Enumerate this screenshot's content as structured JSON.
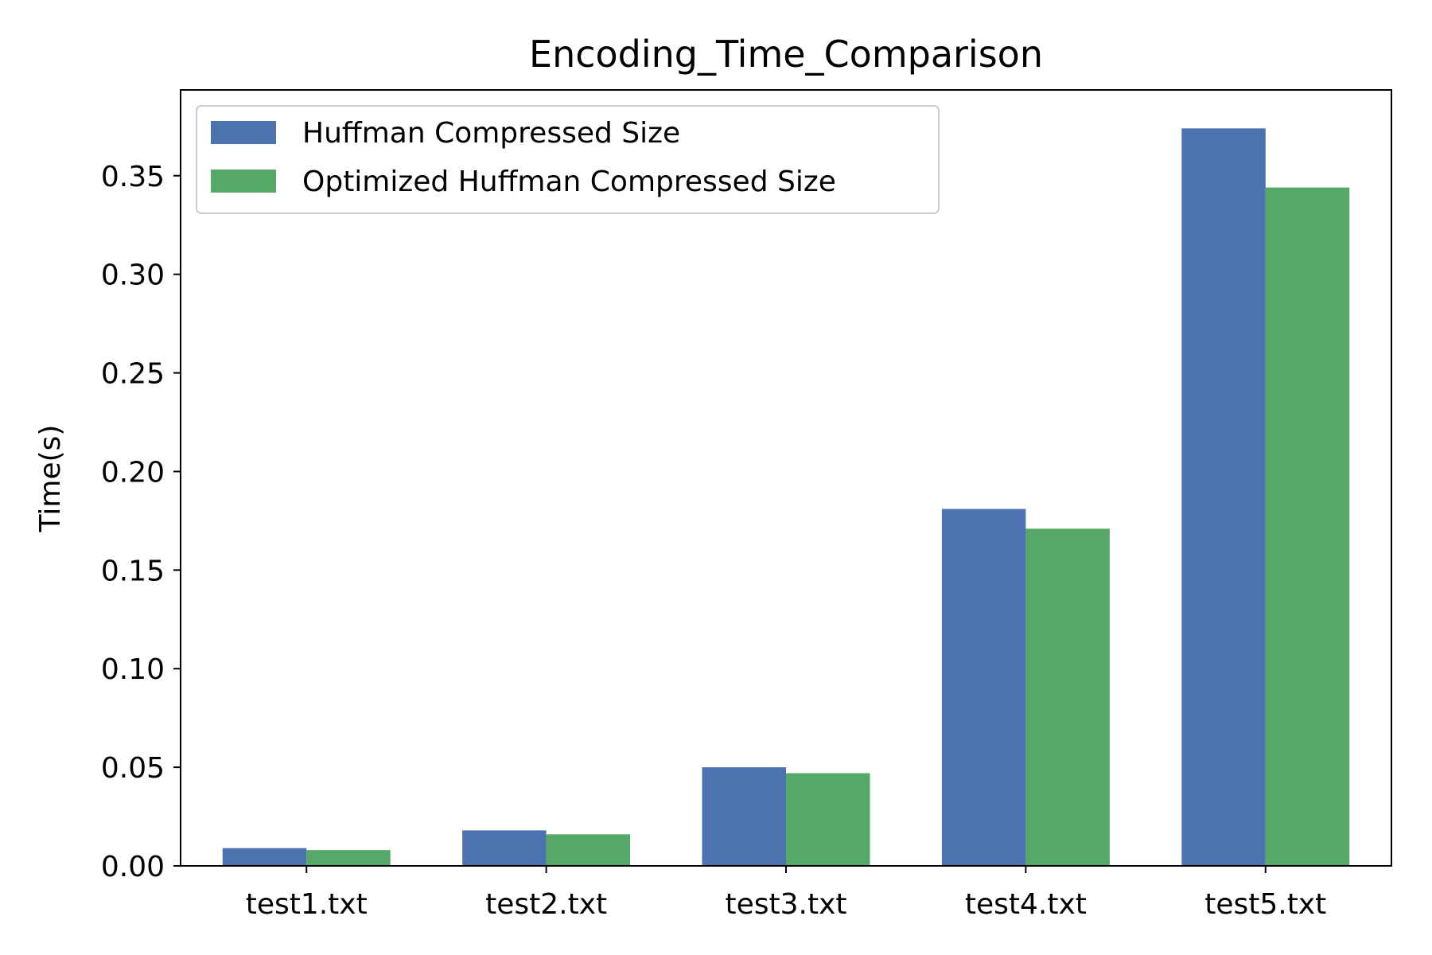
{
  "chart_data": {
    "type": "bar",
    "title": "Encoding_Time_Comparison",
    "xlabel": "",
    "ylabel": "Time(s)",
    "categories": [
      "test1.txt",
      "test2.txt",
      "test3.txt",
      "test4.txt",
      "test5.txt"
    ],
    "series": [
      {
        "name": "Huffman Compressed Size",
        "color": "#4c72b0",
        "values": [
          0.009,
          0.018,
          0.05,
          0.181,
          0.374
        ]
      },
      {
        "name": "Optimized Huffman Compressed Size",
        "color": "#55a868",
        "values": [
          0.008,
          0.016,
          0.047,
          0.171,
          0.344
        ]
      }
    ],
    "ylim": [
      0,
      0.3935
    ],
    "yticks": [
      0.0,
      0.05,
      0.1,
      0.15,
      0.2,
      0.25,
      0.3,
      0.35
    ],
    "ytick_labels": [
      "0.00",
      "0.05",
      "0.10",
      "0.15",
      "0.20",
      "0.25",
      "0.30",
      "0.35"
    ],
    "grid": false,
    "legend_position": "top-left"
  }
}
